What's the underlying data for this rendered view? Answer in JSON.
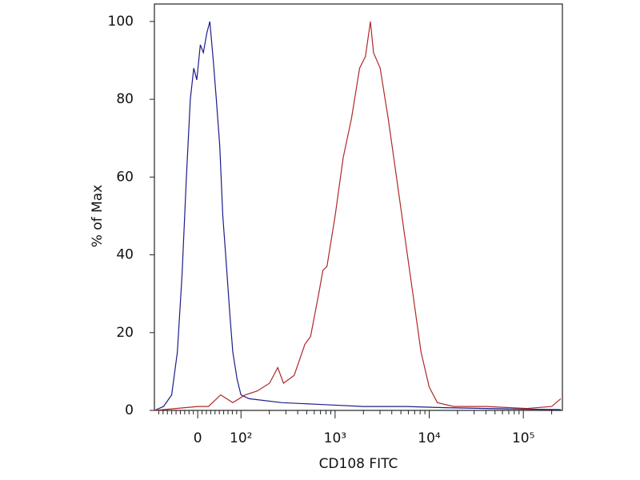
{
  "chart_data": {
    "type": "histogram-overlay",
    "x_label": "CD108 FITC",
    "y_label": "% of Max",
    "xscale": "biexponential",
    "xlim": [
      -100,
      260000
    ],
    "ylim": [
      0,
      104.5
    ],
    "xticks": [
      0,
      {
        "value": 100,
        "label": "10²"
      },
      {
        "value": 1000,
        "label": "10³"
      },
      {
        "value": 10000,
        "label": "10⁴"
      },
      {
        "value": 100000,
        "label": "10⁵"
      }
    ],
    "xminorticks": [
      -90,
      -80,
      -70,
      -60,
      -50,
      -40,
      -30,
      -20,
      -10,
      10,
      20,
      30,
      40,
      50,
      60,
      70,
      80,
      90,
      200,
      300,
      400,
      500,
      600,
      700,
      800,
      900,
      2000,
      3000,
      4000,
      5000,
      6000,
      7000,
      8000,
      9000,
      20000,
      30000,
      40000,
      50000,
      60000,
      70000,
      80000,
      90000,
      200000
    ],
    "yticks": [
      0,
      20,
      40,
      60,
      80,
      100
    ],
    "series": [
      {
        "color": "#1c1c8a",
        "x": [
          -100,
          -79,
          -60,
          -47,
          -36,
          -26,
          -17,
          -9,
          -2,
          6,
          13,
          21,
          28,
          36,
          43,
          51,
          58,
          66,
          74,
          81,
          91,
          100,
          122,
          272,
          740,
          2000,
          5500,
          14800,
          41000,
          110000,
          250000
        ],
        "values": [
          0,
          1,
          4,
          15,
          35,
          60,
          80,
          88,
          85,
          94,
          92,
          97,
          100,
          90,
          80,
          68,
          50,
          38,
          25,
          15,
          8,
          4,
          3,
          2,
          1.5,
          1,
          1,
          0.7,
          0.5,
          0.3,
          0.2
        ]
      },
      {
        "color": "#b02828",
        "x": [
          -100,
          -50,
          0,
          25,
          53,
          81,
          111,
          149,
          201,
          246,
          283,
          367,
          477,
          548,
          670,
          741,
          819,
          1000,
          1220,
          1490,
          1820,
          2100,
          2370,
          2560,
          3010,
          3670,
          4490,
          5480,
          6700,
          8190,
          10000,
          12200,
          18200,
          40700,
          110000,
          200000,
          250000
        ],
        "values": [
          0,
          0.5,
          1,
          1,
          4,
          2,
          4,
          5,
          7,
          11,
          7,
          9,
          17,
          19,
          30,
          36,
          37,
          50,
          65,
          75,
          88,
          91,
          100,
          92,
          88,
          75,
          60,
          45,
          30,
          15,
          6,
          2,
          1,
          1,
          0.5,
          1,
          3
        ]
      }
    ]
  }
}
